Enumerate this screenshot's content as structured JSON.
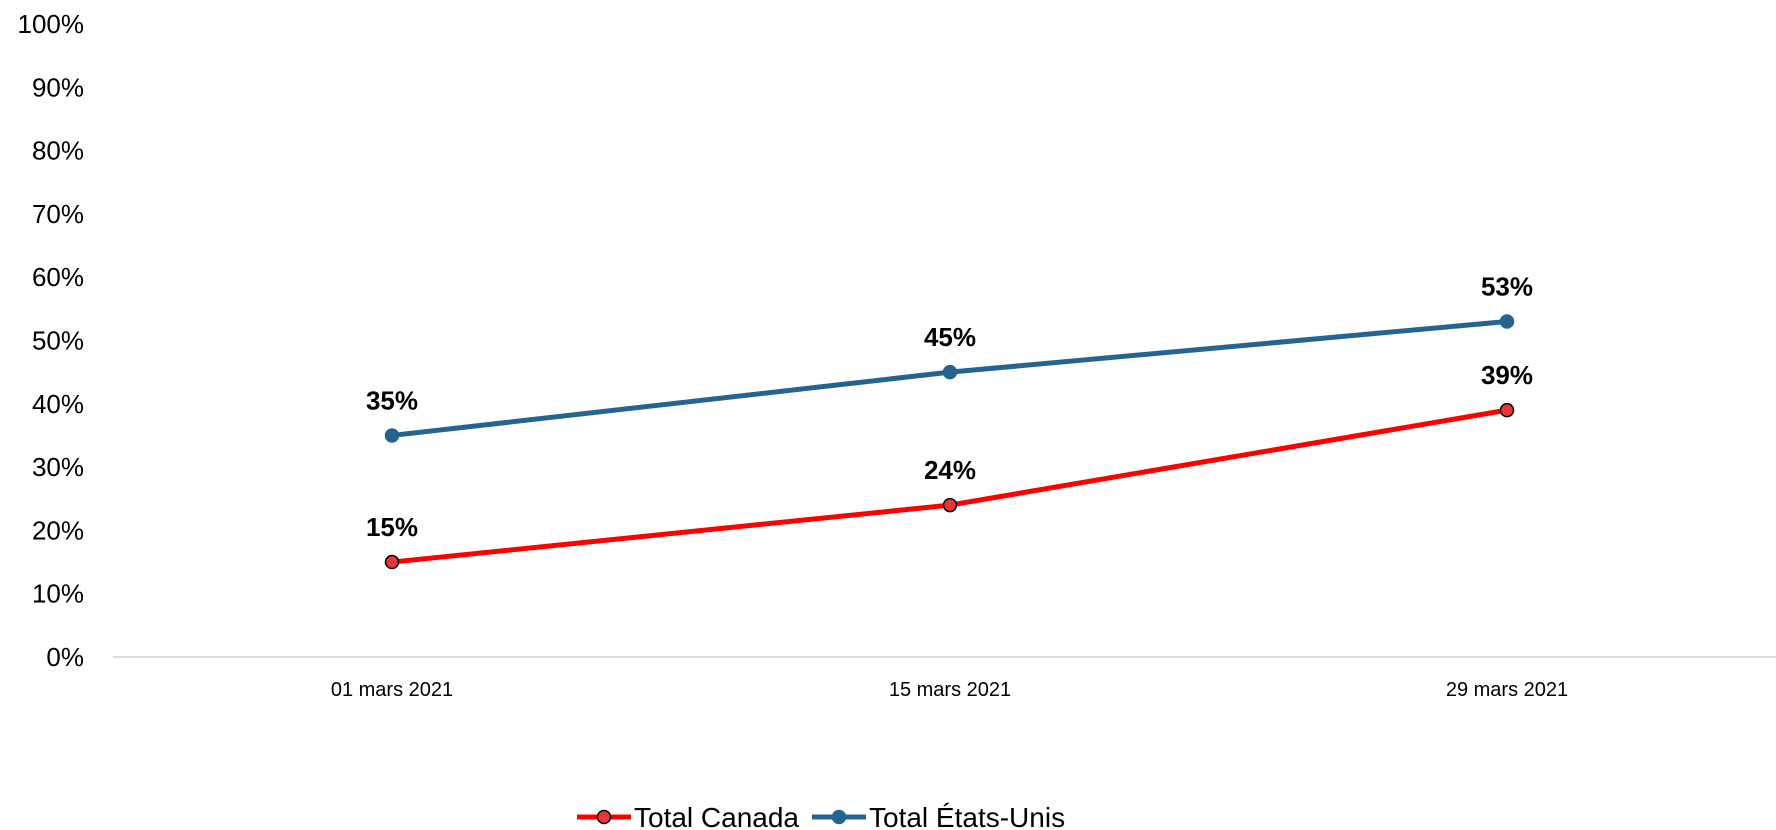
{
  "chart_data": {
    "type": "line",
    "title": "",
    "xlabel": "",
    "ylabel": "",
    "categories": [
      "01 mars 2021",
      "15 mars 2021",
      "29 mars 2021"
    ],
    "y_tick_labels": [
      "0%",
      "10%",
      "20%",
      "30%",
      "40%",
      "50%",
      "60%",
      "70%",
      "80%",
      "90%",
      "100%"
    ],
    "ylim": [
      0,
      100
    ],
    "grid": false,
    "legend_position": "bottom",
    "series": [
      {
        "name": "Total Canada",
        "values": [
          15,
          24,
          39
        ],
        "labels": [
          "15%",
          "24%",
          "39%"
        ],
        "color": "#ff0000",
        "marker_fill": "#e8353a"
      },
      {
        "name": "Total États-Unis",
        "values": [
          35,
          45,
          53
        ],
        "labels": [
          "35%",
          "45%",
          "53%"
        ],
        "color": "#256491",
        "marker_fill": "#256491"
      }
    ]
  }
}
